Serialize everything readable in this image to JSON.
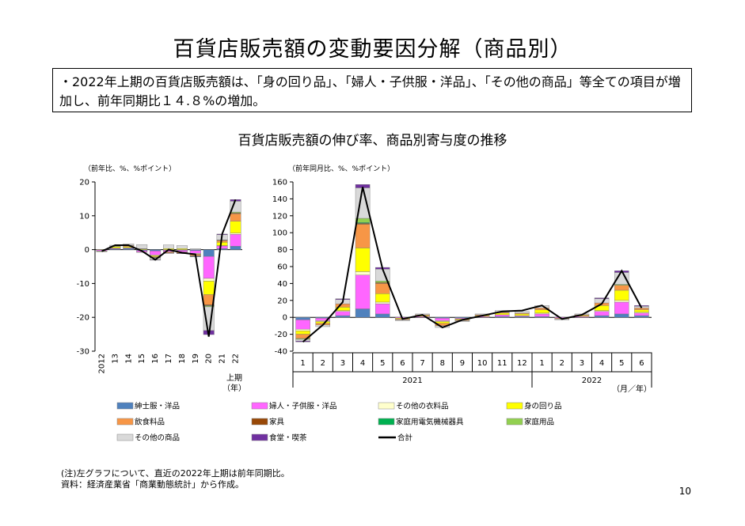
{
  "title": "百貨店販売額の変動要因分解（商品別）",
  "summary": "・2022年上期の百貨店販売額は、「身の回り品」、「婦人・子供服・洋品」、「その他の商品」等全ての項目が増加し、前年同期比１４.８%の増加。",
  "subtitle": "百貨店販売額の伸び率、商品別寄与度の推移",
  "note": "(注)左グラフについて、直近の2022年上期は前年同期比。",
  "source": "資料：経済産業省「商業動態統計」から作成。",
  "page_number": "10",
  "colors": {
    "紳士服・洋品": "#4f81bd",
    "婦人・子供服・洋品": "#ff66ff",
    "その他の衣料品": "#ffffcc",
    "身の回り品": "#ffff00",
    "飲食料品": "#f79646",
    "家具": "#984807",
    "家庭用電気機械器具": "#00b050",
    "家庭用品": "#92d050",
    "その他の商品": "#d9d9d9",
    "食堂・喫茶": "#7030a0",
    "合計": "#000000"
  },
  "legend": [
    "紳士服・洋品",
    "婦人・子供服・洋品",
    "その他の衣料品",
    "身の回り品",
    "飲食料品",
    "家具",
    "家庭用電気機械器具",
    "家庭用品",
    "その他の商品",
    "食堂・喫茶",
    "合計"
  ],
  "chart_data": [
    {
      "type": "bar",
      "stacked": true,
      "unit_label": "（前年比、%、%ポイント）",
      "categories": [
        "2012",
        "13",
        "14",
        "15",
        "16",
        "17",
        "18",
        "19",
        "20",
        "21",
        "22"
      ],
      "x_last_label": "上期",
      "x_unit": "（年）",
      "ylim": [
        -30,
        20
      ],
      "yticks": [
        20,
        10,
        0,
        -10,
        -20,
        -30
      ],
      "series": [
        {
          "name": "紳士服・洋品",
          "values": [
            -0.1,
            0.2,
            0.3,
            -0.3,
            -0.4,
            -0.2,
            -0.2,
            -0.3,
            -2.0,
            0.3,
            1.0
          ]
        },
        {
          "name": "婦人・子供服・洋品",
          "values": [
            -0.3,
            0.2,
            0.2,
            -0.4,
            -1.2,
            -0.4,
            -0.5,
            -0.8,
            -6.5,
            0.8,
            3.5
          ]
        },
        {
          "name": "その他の衣料品",
          "values": [
            -0.1,
            0.1,
            0.1,
            -0.1,
            -0.2,
            -0.1,
            -0.1,
            -0.2,
            -0.8,
            0.1,
            0.4
          ]
        },
        {
          "name": "身の回り品",
          "values": [
            0.1,
            0.4,
            0.3,
            0.2,
            -0.3,
            0.3,
            0.3,
            -0.1,
            -4.0,
            1.0,
            3.5
          ]
        },
        {
          "name": "飲食料品",
          "values": [
            -0.1,
            0.1,
            0.3,
            0.1,
            -0.2,
            -0.3,
            -0.3,
            -0.4,
            -3.0,
            0.5,
            2.2
          ]
        },
        {
          "name": "家具",
          "values": [
            0.0,
            0.0,
            0.0,
            0.0,
            -0.1,
            0.0,
            0.0,
            -0.1,
            -0.2,
            0.1,
            0.2
          ]
        },
        {
          "name": "家庭用電気機械器具",
          "values": [
            0.0,
            0.0,
            0.0,
            0.0,
            0.0,
            0.0,
            0.0,
            0.0,
            -0.1,
            0.0,
            0.0
          ]
        },
        {
          "name": "家庭用品",
          "values": [
            0.0,
            0.0,
            0.1,
            0.0,
            -0.1,
            0.0,
            0.0,
            -0.1,
            -0.3,
            0.1,
            0.3
          ]
        },
        {
          "name": "その他の商品",
          "values": [
            0.0,
            0.3,
            0.4,
            1.2,
            -0.5,
            1.1,
            0.9,
            0.3,
            -7.0,
            1.5,
            3.2
          ]
        },
        {
          "name": "食堂・喫茶",
          "values": [
            0.0,
            0.0,
            0.0,
            0.0,
            -0.1,
            -0.1,
            -0.1,
            -0.1,
            -1.2,
            0.2,
            0.5
          ]
        }
      ],
      "total": [
        -0.5,
        1.3,
        1.3,
        -0.4,
        -3.0,
        0.0,
        -0.9,
        -1.4,
        -25.7,
        4.6,
        14.8
      ]
    },
    {
      "type": "bar",
      "stacked": true,
      "unit_label": "（前年同月比、%、%ポイント）",
      "categories": [
        "1",
        "2",
        "3",
        "4",
        "5",
        "6",
        "7",
        "8",
        "9",
        "10",
        "11",
        "12",
        "1",
        "2",
        "3",
        "4",
        "5",
        "6"
      ],
      "year_labels": [
        "2021",
        "2022"
      ],
      "x_unit": "（月／年）",
      "ylim": [
        -40,
        160
      ],
      "yticks": [
        160,
        140,
        120,
        100,
        80,
        60,
        40,
        20,
        0,
        -20,
        -40
      ],
      "series": [
        {
          "name": "紳士服・洋品",
          "values": [
            -3,
            -1,
            2,
            10,
            4,
            0,
            0,
            -1,
            -1,
            0,
            1,
            1,
            1,
            0,
            0,
            2,
            4,
            2
          ]
        },
        {
          "name": "婦人・子供服・洋品",
          "values": [
            -11,
            -3,
            5,
            40,
            12,
            -1,
            1,
            -3,
            -1,
            1,
            2,
            1,
            3,
            -1,
            1,
            5,
            14,
            3
          ]
        },
        {
          "name": "その他の衣料品",
          "values": [
            -2,
            -1,
            1,
            4,
            2,
            0,
            0,
            -1,
            0,
            0,
            0,
            0,
            1,
            0,
            0,
            1,
            2,
            1
          ]
        },
        {
          "name": "身の回り品",
          "values": [
            -4,
            -2,
            4,
            28,
            10,
            -1,
            1,
            -2,
            -1,
            1,
            2,
            2,
            4,
            0,
            1,
            6,
            12,
            3
          ]
        },
        {
          "name": "飲食料品",
          "values": [
            -5,
            -2,
            4,
            28,
            12,
            -1,
            1,
            -3,
            -1,
            1,
            1,
            1,
            2,
            -1,
            1,
            3,
            6,
            2
          ]
        },
        {
          "name": "家具",
          "values": [
            0,
            0,
            0,
            1,
            1,
            0,
            0,
            0,
            0,
            0,
            0,
            0,
            0,
            0,
            0,
            0,
            0,
            0
          ]
        },
        {
          "name": "家庭用電気機械器具",
          "values": [
            0,
            0,
            0,
            1,
            0,
            0,
            0,
            0,
            0,
            0,
            0,
            0,
            0,
            0,
            0,
            0,
            0,
            0
          ]
        },
        {
          "name": "家庭用品",
          "values": [
            -1,
            0,
            0,
            5,
            2,
            0,
            0,
            0,
            0,
            0,
            0,
            0,
            0,
            0,
            0,
            0,
            1,
            0
          ]
        },
        {
          "name": "その他の商品",
          "values": [
            -2,
            -2,
            5,
            36,
            14,
            -1,
            1,
            -2,
            -1,
            1,
            2,
            2,
            3,
            -1,
            1,
            5,
            14,
            2
          ]
        },
        {
          "name": "食堂・喫茶",
          "values": [
            -1,
            0,
            1,
            4,
            2,
            0,
            0,
            0,
            0,
            0,
            0,
            0,
            0,
            0,
            0,
            1,
            2,
            1
          ]
        }
      ],
      "total": [
        -29,
        -9,
        18,
        154,
        57,
        -2,
        3,
        -12,
        -3,
        2,
        7,
        8,
        14,
        -2,
        3,
        16,
        55,
        11
      ]
    }
  ]
}
